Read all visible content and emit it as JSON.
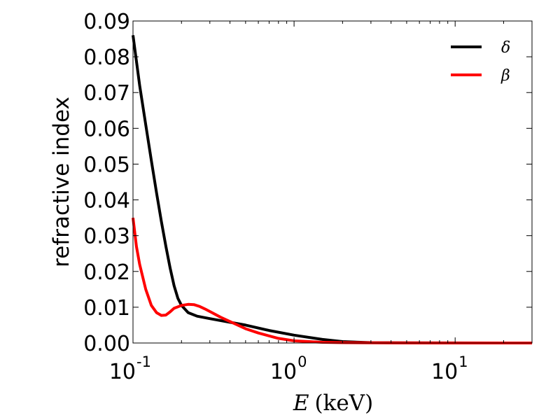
{
  "chart_data": {
    "type": "line",
    "title": "",
    "xlabel_symbol": "E",
    "xlabel_unit": "(keV)",
    "ylabel": "refractive index",
    "xscale": "log",
    "xlim": [
      0.1,
      30
    ],
    "ylim": [
      0,
      0.09
    ],
    "x_ticks": [
      {
        "base": "10",
        "exp": "-1",
        "value": 0.1
      },
      {
        "base": "10",
        "exp": "0",
        "value": 1
      },
      {
        "base": "10",
        "exp": "1",
        "value": 10
      }
    ],
    "y_ticks": [
      "0.00",
      "0.01",
      "0.02",
      "0.03",
      "0.04",
      "0.05",
      "0.06",
      "0.07",
      "0.08",
      "0.09"
    ],
    "grid": false,
    "legend_position": "top-right",
    "series": [
      {
        "name": "δ",
        "color": "#000000",
        "x": [
          0.1,
          0.11,
          0.12,
          0.13,
          0.14,
          0.15,
          0.16,
          0.17,
          0.18,
          0.19,
          0.2,
          0.22,
          0.25,
          0.3,
          0.4,
          0.5,
          0.7,
          1.0,
          1.5,
          2.0,
          3.0,
          5.0,
          10.0,
          20.0,
          30.0
        ],
        "y": [
          0.086,
          0.072,
          0.061,
          0.051,
          0.042,
          0.034,
          0.027,
          0.021,
          0.016,
          0.0125,
          0.0105,
          0.0085,
          0.0075,
          0.0068,
          0.0058,
          0.005,
          0.0035,
          0.0022,
          0.001,
          0.0004,
          0.0001,
          3e-05,
          1e-05,
          0.0,
          0.0
        ]
      },
      {
        "name": "β",
        "color": "#ff0000",
        "x": [
          0.1,
          0.105,
          0.11,
          0.12,
          0.13,
          0.14,
          0.15,
          0.16,
          0.17,
          0.18,
          0.2,
          0.22,
          0.24,
          0.26,
          0.28,
          0.3,
          0.35,
          0.4,
          0.5,
          0.6,
          0.8,
          1.0,
          1.5,
          2.0,
          3.0,
          5.0,
          10.0,
          20.0,
          30.0
        ],
        "y": [
          0.035,
          0.027,
          0.022,
          0.015,
          0.0105,
          0.0085,
          0.0077,
          0.0078,
          0.0087,
          0.0097,
          0.0105,
          0.0108,
          0.0107,
          0.0102,
          0.0095,
          0.0088,
          0.0072,
          0.006,
          0.004,
          0.0028,
          0.0013,
          0.0006,
          0.0002,
          0.0001,
          5e-05,
          2e-05,
          0.0,
          0.0,
          0.0
        ]
      }
    ]
  }
}
